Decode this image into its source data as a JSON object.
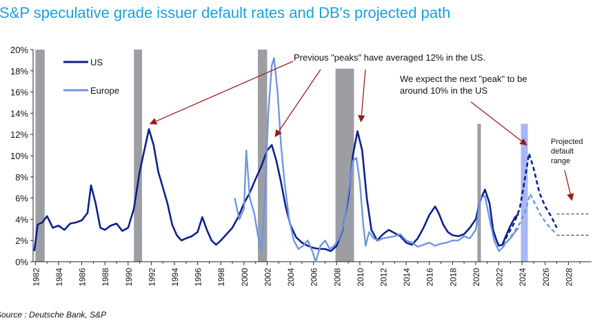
{
  "page": {
    "title": "S&P speculative grade issuer default rates and DB's projected path",
    "source": "Source : Deutsche Bank, S&P"
  },
  "colors": {
    "title": "#1aa0dc",
    "us": "#0b1f8f",
    "europe": "#6f96e0",
    "recession_bar": "#9d9ea4",
    "projection_bar": "#a9b7f6",
    "arrow": "#9c1b1b"
  },
  "chart_data": {
    "type": "line",
    "title": "S&P speculative grade issuer default rates and DB's projected path",
    "xlabel": "",
    "ylabel": "",
    "xlim": [
      1981.8,
      2030.0
    ],
    "ylim": [
      0,
      20
    ],
    "x_ticks": [
      "1982",
      "1984",
      "1986",
      "1988",
      "1990",
      "1992",
      "1994",
      "1996",
      "1998",
      "2000",
      "2002",
      "2004",
      "2006",
      "2008",
      "2010",
      "2012",
      "2014",
      "2016",
      "2018",
      "2020",
      "2022",
      "2024",
      "2026",
      "2028"
    ],
    "y_ticks": [
      "0%",
      "2%",
      "4%",
      "6%",
      "8%",
      "10%",
      "12%",
      "14%",
      "16%",
      "18%",
      "20%"
    ],
    "legend": {
      "position": "top-left",
      "entries": [
        "US",
        "Europe"
      ]
    },
    "series": [
      {
        "name": "US",
        "style": "solid",
        "points": [
          [
            1981.9,
            1.0
          ],
          [
            1982.2,
            3.5
          ],
          [
            1982.6,
            3.7
          ],
          [
            1983.0,
            4.3
          ],
          [
            1983.5,
            3.2
          ],
          [
            1984.0,
            3.4
          ],
          [
            1984.5,
            3.0
          ],
          [
            1985.0,
            3.6
          ],
          [
            1985.5,
            3.7
          ],
          [
            1986.0,
            3.9
          ],
          [
            1986.5,
            4.6
          ],
          [
            1986.8,
            7.2
          ],
          [
            1987.2,
            5.5
          ],
          [
            1987.6,
            3.2
          ],
          [
            1988.0,
            3.0
          ],
          [
            1988.5,
            3.4
          ],
          [
            1989.0,
            3.6
          ],
          [
            1989.5,
            2.9
          ],
          [
            1990.0,
            3.2
          ],
          [
            1990.5,
            5.0
          ],
          [
            1991.0,
            8.5
          ],
          [
            1991.4,
            10.5
          ],
          [
            1991.8,
            12.5
          ],
          [
            1992.2,
            11.0
          ],
          [
            1992.6,
            8.5
          ],
          [
            1993.0,
            7.0
          ],
          [
            1993.4,
            5.5
          ],
          [
            1993.8,
            3.5
          ],
          [
            1994.2,
            2.5
          ],
          [
            1994.6,
            2.0
          ],
          [
            1995.0,
            2.2
          ],
          [
            1995.5,
            2.4
          ],
          [
            1996.0,
            2.8
          ],
          [
            1996.4,
            4.2
          ],
          [
            1996.8,
            3.0
          ],
          [
            1997.2,
            2.0
          ],
          [
            1997.6,
            1.6
          ],
          [
            1998.0,
            2.0
          ],
          [
            1998.5,
            2.6
          ],
          [
            1999.0,
            3.2
          ],
          [
            1999.5,
            4.2
          ],
          [
            2000.0,
            5.5
          ],
          [
            2000.5,
            6.5
          ],
          [
            2001.0,
            7.8
          ],
          [
            2001.5,
            9.0
          ],
          [
            2002.0,
            10.5
          ],
          [
            2002.4,
            11.0
          ],
          [
            2002.8,
            9.5
          ],
          [
            2003.2,
            7.5
          ],
          [
            2003.6,
            5.2
          ],
          [
            2004.0,
            3.5
          ],
          [
            2004.5,
            2.3
          ],
          [
            2005.0,
            1.8
          ],
          [
            2005.5,
            1.5
          ],
          [
            2006.0,
            1.3
          ],
          [
            2006.5,
            1.2
          ],
          [
            2007.0,
            1.2
          ],
          [
            2007.5,
            1.0
          ],
          [
            2008.0,
            1.5
          ],
          [
            2008.5,
            3.0
          ],
          [
            2009.0,
            6.0
          ],
          [
            2009.4,
            10.0
          ],
          [
            2009.8,
            12.3
          ],
          [
            2010.2,
            10.5
          ],
          [
            2010.6,
            6.0
          ],
          [
            2011.0,
            3.0
          ],
          [
            2011.5,
            2.0
          ],
          [
            2012.0,
            2.6
          ],
          [
            2012.5,
            3.0
          ],
          [
            2013.0,
            2.7
          ],
          [
            2013.5,
            2.4
          ],
          [
            2014.0,
            1.8
          ],
          [
            2014.5,
            1.6
          ],
          [
            2015.0,
            2.2
          ],
          [
            2015.5,
            3.2
          ],
          [
            2016.0,
            4.4
          ],
          [
            2016.5,
            5.2
          ],
          [
            2016.8,
            4.6
          ],
          [
            2017.2,
            3.5
          ],
          [
            2017.6,
            2.8
          ],
          [
            2018.0,
            2.5
          ],
          [
            2018.5,
            2.4
          ],
          [
            2019.0,
            2.6
          ],
          [
            2019.5,
            3.2
          ],
          [
            2020.0,
            4.0
          ],
          [
            2020.4,
            5.8
          ],
          [
            2020.8,
            6.8
          ],
          [
            2021.2,
            5.5
          ],
          [
            2021.5,
            3.0
          ],
          [
            2021.8,
            2.0
          ],
          [
            2022.0,
            1.5
          ],
          [
            2022.3,
            1.6
          ],
          [
            2022.6,
            2.4
          ],
          [
            2023.0,
            3.4
          ],
          [
            2023.4,
            4.2
          ],
          [
            2023.7,
            4.5
          ]
        ]
      },
      {
        "name": "Europe",
        "style": "solid",
        "points": [
          [
            1999.2,
            6.0
          ],
          [
            1999.6,
            4.0
          ],
          [
            2000.0,
            5.0
          ],
          [
            2000.2,
            10.5
          ],
          [
            2000.5,
            6.0
          ],
          [
            2000.9,
            4.5
          ],
          [
            2001.2,
            2.5
          ],
          [
            2001.5,
            1.0
          ],
          [
            2001.8,
            6.0
          ],
          [
            2002.1,
            14.0
          ],
          [
            2002.4,
            18.5
          ],
          [
            2002.6,
            19.2
          ],
          [
            2002.9,
            16.0
          ],
          [
            2003.2,
            11.0
          ],
          [
            2003.5,
            7.5
          ],
          [
            2003.9,
            4.0
          ],
          [
            2004.3,
            2.0
          ],
          [
            2004.7,
            1.2
          ],
          [
            2005.1,
            1.5
          ],
          [
            2005.5,
            2.0
          ],
          [
            2005.9,
            1.0
          ],
          [
            2006.2,
            0.0
          ],
          [
            2006.6,
            1.5
          ],
          [
            2007.0,
            2.0
          ],
          [
            2007.4,
            1.2
          ],
          [
            2007.8,
            1.5
          ],
          [
            2008.2,
            2.2
          ],
          [
            2008.6,
            3.5
          ],
          [
            2009.0,
            6.5
          ],
          [
            2009.4,
            9.5
          ],
          [
            2009.7,
            9.8
          ],
          [
            2010.0,
            7.5
          ],
          [
            2010.3,
            3.5
          ],
          [
            2010.5,
            1.5
          ],
          [
            2010.8,
            2.8
          ],
          [
            2011.2,
            2.2
          ],
          [
            2011.6,
            2.0
          ],
          [
            2012.0,
            2.2
          ],
          [
            2012.5,
            2.3
          ],
          [
            2013.0,
            2.4
          ],
          [
            2013.5,
            2.6
          ],
          [
            2014.0,
            2.0
          ],
          [
            2014.5,
            1.8
          ],
          [
            2015.0,
            1.4
          ],
          [
            2015.5,
            1.6
          ],
          [
            2016.0,
            1.8
          ],
          [
            2016.5,
            1.5
          ],
          [
            2017.0,
            1.7
          ],
          [
            2017.5,
            1.8
          ],
          [
            2018.0,
            2.0
          ],
          [
            2018.5,
            2.0
          ],
          [
            2019.0,
            2.4
          ],
          [
            2019.5,
            2.2
          ],
          [
            2020.0,
            3.0
          ],
          [
            2020.4,
            6.0
          ],
          [
            2020.8,
            6.2
          ],
          [
            2021.2,
            4.0
          ],
          [
            2021.6,
            2.0
          ],
          [
            2022.0,
            1.0
          ],
          [
            2022.3,
            1.3
          ],
          [
            2022.6,
            1.8
          ],
          [
            2023.0,
            2.2
          ],
          [
            2023.4,
            2.8
          ],
          [
            2023.7,
            3.2
          ]
        ]
      },
      {
        "name": "US",
        "style": "dashed",
        "points": [
          [
            2022.3,
            1.6
          ],
          [
            2022.8,
            2.6
          ],
          [
            2023.3,
            3.6
          ],
          [
            2023.8,
            5.0
          ],
          [
            2024.2,
            7.5
          ],
          [
            2024.6,
            10.2
          ],
          [
            2025.0,
            8.8
          ],
          [
            2025.5,
            6.5
          ],
          [
            2026.0,
            5.2
          ],
          [
            2026.5,
            4.3
          ],
          [
            2027.0,
            3.2
          ]
        ]
      },
      {
        "name": "Europe",
        "style": "dashed",
        "points": [
          [
            2022.3,
            1.3
          ],
          [
            2022.8,
            2.0
          ],
          [
            2023.3,
            2.8
          ],
          [
            2023.8,
            3.6
          ],
          [
            2024.3,
            4.8
          ],
          [
            2024.7,
            6.4
          ],
          [
            2025.1,
            5.5
          ],
          [
            2025.6,
            4.4
          ],
          [
            2026.1,
            3.6
          ],
          [
            2026.6,
            3.0
          ],
          [
            2027.0,
            2.6
          ]
        ]
      }
    ],
    "shaded_periods": [
      {
        "kind": "recession",
        "start": 1982.0,
        "end": 1982.8
      },
      {
        "kind": "recession",
        "start": 1990.5,
        "end": 1991.2
      },
      {
        "kind": "recession",
        "start": 2001.2,
        "end": 2002.0
      },
      {
        "kind": "recession",
        "start": 2007.9,
        "end": 2009.5
      },
      {
        "kind": "recession",
        "start": 2020.15,
        "end": 2020.45
      },
      {
        "kind": "projection",
        "start": 2023.9,
        "end": 2024.5
      }
    ],
    "projected_range": {
      "low": 2.5,
      "high": 4.5,
      "x_start": 2027.0,
      "x_end": 2029.8
    },
    "annotations": [
      {
        "id": "peaks",
        "text": "Previous \"peaks\" have averaged 12% in the US.",
        "arrows": [
          {
            "to": [
              1991.9,
              13.0
            ]
          },
          {
            "to": [
              2002.7,
              11.8
            ]
          },
          {
            "to": [
              2010.1,
              13.2
            ]
          }
        ]
      },
      {
        "id": "next_peak",
        "lines": [
          "We expect the next \"peak\" to be",
          "around 10% in the US"
        ],
        "arrows": [
          {
            "to": [
              2024.4,
              11.0
            ]
          }
        ]
      },
      {
        "id": "range",
        "lines": [
          "Projected",
          "default",
          "range"
        ],
        "arrows": [
          {
            "to": [
              2028.3,
              5.8
            ]
          }
        ]
      }
    ]
  }
}
